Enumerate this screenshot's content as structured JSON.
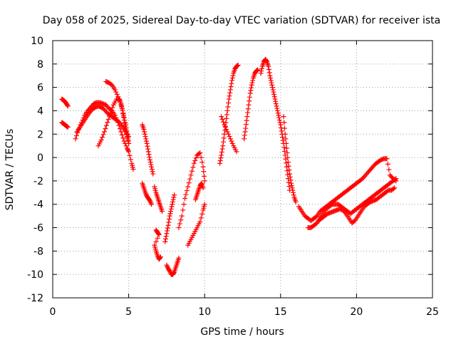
{
  "chart_data": {
    "type": "scatter",
    "title": "Day 058 of 2025, Sidereal Day-to-day VTEC variation (SDTVAR) for receiver ista",
    "xlabel": "GPS time / hours",
    "ylabel": "SDTVAR / TECUs",
    "xlim": [
      0,
      25
    ],
    "ylim": [
      -12,
      10
    ],
    "xticks": [
      0,
      5,
      10,
      15,
      20,
      25
    ],
    "yticks": [
      -12,
      -10,
      -8,
      -6,
      -4,
      -2,
      0,
      2,
      4,
      6,
      8,
      10
    ],
    "grid": true,
    "legend": "none",
    "marker": "plus",
    "color": "#ff0000",
    "series": [
      {
        "x": [
          0.6,
          0.7,
          0.8,
          0.9,
          1.0,
          0.6,
          0.7,
          0.8,
          0.9,
          1.0,
          1.5,
          1.7,
          1.9,
          2.1,
          2.3,
          2.5,
          2.7,
          2.9,
          3.1,
          3.3,
          3.5,
          3.7,
          3.9,
          4.1,
          4.3,
          4.5,
          4.7,
          4.9,
          5.0,
          5.2,
          5.3
        ],
        "y": [
          5.0,
          4.9,
          4.8,
          4.6,
          4.4,
          3.0,
          2.9,
          2.8,
          2.7,
          2.6,
          1.6,
          2.4,
          3.0,
          3.6,
          4.0,
          4.3,
          4.6,
          4.7,
          4.7,
          4.6,
          4.5,
          4.2,
          4.0,
          3.6,
          3.0,
          2.2,
          1.4,
          0.8,
          0.5,
          -0.5,
          -1.0
        ]
      },
      {
        "x": [
          1.6,
          1.8,
          2.0,
          2.2,
          2.4,
          2.6,
          2.8,
          3.0,
          3.2,
          3.4,
          3.6,
          3.8,
          4.0,
          4.2,
          4.4,
          4.6,
          4.8,
          5.0
        ],
        "y": [
          2.2,
          2.6,
          3.0,
          3.4,
          3.8,
          4.1,
          4.3,
          4.4,
          4.3,
          4.1,
          3.8,
          3.6,
          3.4,
          3.2,
          3.0,
          2.6,
          2.2,
          1.8
        ]
      },
      {
        "x": [
          3.0,
          3.2,
          3.4,
          3.6,
          3.8,
          4.0,
          4.2,
          4.4,
          4.5,
          4.6,
          4.7,
          4.8,
          4.9,
          5.0
        ],
        "y": [
          1.0,
          1.5,
          2.2,
          3.0,
          3.8,
          4.5,
          5.0,
          5.0,
          4.6,
          4.0,
          3.2,
          2.4,
          1.8,
          1.2
        ]
      },
      {
        "x": [
          3.5,
          3.7,
          3.9,
          4.1,
          4.3,
          4.5,
          4.6,
          4.7,
          4.8,
          4.9,
          5.0
        ],
        "y": [
          6.5,
          6.4,
          6.2,
          5.8,
          5.2,
          4.5,
          4.0,
          3.4,
          2.8,
          2.0,
          1.2
        ]
      },
      {
        "x": [
          5.9,
          6.0,
          6.1,
          6.2,
          6.3,
          6.4,
          6.5,
          6.6,
          5.9,
          6.0,
          6.1,
          6.2,
          6.3,
          6.4,
          6.5
        ],
        "y": [
          2.8,
          2.4,
          1.8,
          1.2,
          0.5,
          -0.2,
          -0.8,
          -1.4,
          -2.2,
          -2.6,
          -3.0,
          -3.3,
          -3.5,
          -3.7,
          -4.0
        ]
      },
      {
        "x": [
          6.7,
          6.8,
          6.9,
          7.0,
          7.1,
          7.2,
          6.8,
          6.9,
          7.0,
          6.7,
          6.8,
          6.9,
          7.0,
          7.1
        ],
        "y": [
          -2.5,
          -3.0,
          -3.4,
          -3.8,
          -4.2,
          -4.6,
          -6.2,
          -6.4,
          -6.6,
          -7.5,
          -8.0,
          -8.4,
          -8.7,
          -8.5
        ]
      },
      {
        "x": [
          7.5,
          7.6,
          7.7,
          7.8,
          7.9,
          8.0,
          8.1,
          8.2,
          8.3,
          7.4,
          7.5,
          7.6,
          7.7,
          7.8,
          7.9,
          8.0
        ],
        "y": [
          -9.2,
          -9.5,
          -9.7,
          -10.0,
          -10.0,
          -9.8,
          -9.4,
          -9.0,
          -8.6,
          -7.2,
          -6.5,
          -5.8,
          -5.0,
          -4.4,
          -3.8,
          -3.2
        ]
      },
      {
        "x": [
          8.3,
          8.5,
          8.7,
          8.9,
          9.1,
          9.3,
          9.5,
          9.7,
          9.9,
          10.0
        ],
        "y": [
          -6.0,
          -5.0,
          -3.5,
          -2.5,
          -1.5,
          -0.5,
          0.2,
          0.4,
          -0.8,
          -2.0
        ]
      },
      {
        "x": [
          8.9,
          9.1,
          9.3,
          9.5,
          9.7,
          9.9,
          10.0,
          9.4,
          9.5,
          9.6,
          9.7,
          9.8,
          9.9
        ],
        "y": [
          -7.5,
          -7.0,
          -6.5,
          -6.0,
          -5.5,
          -4.5,
          -4.0,
          -3.6,
          -3.2,
          -2.8,
          -2.4,
          -2.2,
          -2.6
        ]
      },
      {
        "x": [
          11.0,
          11.1,
          11.2,
          11.3,
          11.4,
          11.5,
          11.6,
          11.7,
          11.8,
          11.9,
          12.0,
          12.1,
          12.2
        ],
        "y": [
          -0.5,
          0.2,
          1.0,
          2.0,
          3.0,
          4.0,
          5.0,
          5.8,
          6.6,
          7.2,
          7.6,
          7.8,
          7.9
        ]
      },
      {
        "x": [
          11.1,
          11.3,
          11.5,
          11.7,
          11.9,
          12.1
        ],
        "y": [
          3.5,
          2.8,
          2.2,
          1.6,
          1.0,
          0.5
        ]
      },
      {
        "x": [
          12.6,
          12.7,
          12.8,
          12.9,
          13.0,
          13.1,
          13.2,
          13.3,
          13.4,
          13.5
        ],
        "y": [
          1.6,
          2.5,
          3.5,
          4.5,
          5.5,
          6.2,
          6.8,
          7.2,
          7.4,
          7.5
        ]
      },
      {
        "x": [
          13.7,
          13.8,
          13.9,
          14.0,
          14.1,
          14.2,
          14.3,
          14.4,
          14.5,
          14.6,
          14.7,
          14.8,
          14.9,
          15.0,
          15.1,
          15.2,
          15.3,
          15.4,
          15.5,
          15.6
        ],
        "y": [
          7.2,
          7.8,
          8.2,
          8.4,
          8.2,
          7.8,
          7.0,
          6.4,
          5.8,
          5.2,
          4.6,
          4.0,
          3.4,
          2.8,
          2.0,
          1.2,
          0.2,
          -0.8,
          -1.8,
          -2.8
        ]
      },
      {
        "x": [
          15.2,
          15.3,
          15.4,
          15.5,
          15.6,
          15.7,
          15.8,
          15.9,
          16.0
        ],
        "y": [
          3.5,
          2.0,
          0.8,
          -0.4,
          -1.4,
          -2.2,
          -2.8,
          -3.4,
          -3.8
        ]
      },
      {
        "x": [
          16.2,
          16.4,
          16.6,
          16.8,
          17.0,
          17.2,
          17.4,
          17.6,
          17.8,
          18.0,
          18.2,
          18.4,
          18.6,
          18.8,
          19.0,
          19.2,
          19.4,
          19.6,
          19.8,
          20.0,
          20.2,
          20.4,
          20.6,
          20.8,
          21.0,
          21.2,
          21.4,
          21.6,
          21.8,
          22.0,
          22.2,
          22.4,
          22.6
        ],
        "y": [
          -4.2,
          -4.6,
          -5.0,
          -5.2,
          -5.4,
          -5.2,
          -5.0,
          -4.6,
          -4.4,
          -4.2,
          -4.0,
          -3.8,
          -3.6,
          -3.4,
          -3.2,
          -3.0,
          -2.8,
          -2.6,
          -2.4,
          -2.2,
          -2.0,
          -1.8,
          -1.5,
          -1.2,
          -0.9,
          -0.6,
          -0.4,
          -0.2,
          -0.1,
          -0.1,
          -1.5,
          -1.8,
          -2.0
        ]
      },
      {
        "x": [
          16.8,
          17.0,
          17.2,
          17.4,
          17.6,
          17.8,
          18.0,
          18.2,
          18.4,
          18.6,
          18.8,
          19.0,
          19.2,
          19.4,
          19.6,
          19.8,
          20.0,
          20.2,
          20.4,
          20.6,
          20.8,
          21.0,
          21.2,
          21.4,
          21.6,
          21.8,
          22.0,
          22.2,
          22.4,
          22.6
        ],
        "y": [
          -6.0,
          -6.0,
          -5.8,
          -5.6,
          -5.2,
          -4.8,
          -4.4,
          -4.2,
          -4.0,
          -4.0,
          -4.0,
          -4.2,
          -4.4,
          -4.6,
          -4.8,
          -4.6,
          -4.4,
          -4.2,
          -4.0,
          -3.8,
          -3.6,
          -3.4,
          -3.2,
          -3.0,
          -2.8,
          -2.6,
          -2.4,
          -2.2,
          -2.0,
          -1.8
        ]
      },
      {
        "x": [
          17.5,
          17.7,
          17.9,
          18.1,
          18.3,
          18.5,
          18.7,
          18.9,
          19.1,
          19.3,
          19.5,
          19.7,
          19.9,
          20.1,
          20.3,
          20.5,
          20.7,
          20.9,
          21.1,
          21.3,
          21.5,
          21.7,
          21.9,
          22.1,
          22.3,
          22.5
        ],
        "y": [
          -5.4,
          -5.2,
          -5.0,
          -4.8,
          -4.7,
          -4.6,
          -4.5,
          -4.4,
          -4.5,
          -4.8,
          -5.2,
          -5.6,
          -5.4,
          -5.0,
          -4.6,
          -4.2,
          -4.0,
          -3.8,
          -3.7,
          -3.6,
          -3.4,
          -3.2,
          -3.0,
          -2.8,
          -2.8,
          -2.6
        ]
      }
    ]
  }
}
